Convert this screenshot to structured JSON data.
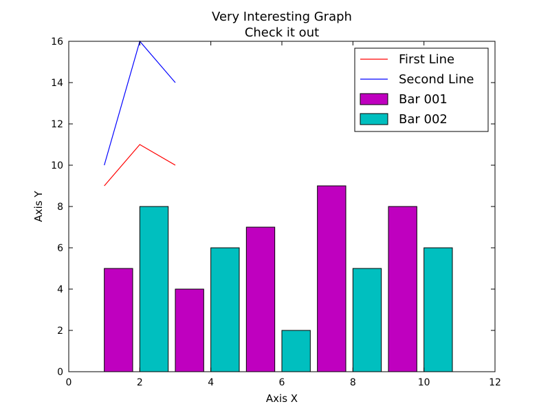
{
  "chart_data": {
    "type": "bar",
    "title": "Very Interesting Graph",
    "subtitle": "Check it out",
    "xlabel": "Axis X",
    "ylabel": "Axis Y",
    "xlim": [
      0,
      12
    ],
    "ylim": [
      0,
      16
    ],
    "xticks": [
      0,
      2,
      4,
      6,
      8,
      10,
      12
    ],
    "yticks": [
      0,
      2,
      4,
      6,
      8,
      10,
      12,
      14,
      16
    ],
    "grid": false,
    "legend_position": "top-right",
    "bar_width": 0.8,
    "bars": [
      {
        "name": "Bar 001",
        "color": "#bf00bf",
        "x": [
          1,
          3,
          5,
          7,
          9
        ],
        "values": [
          5,
          4,
          7,
          9,
          8
        ]
      },
      {
        "name": "Bar 002",
        "color": "#00bfbf",
        "x": [
          2,
          4,
          6,
          8,
          10
        ],
        "values": [
          8,
          6,
          2,
          5,
          6
        ]
      }
    ],
    "lines": [
      {
        "name": "First Line",
        "color": "#ff0000",
        "x": [
          1,
          2,
          3
        ],
        "values": [
          9,
          11,
          10
        ]
      },
      {
        "name": "Second Line",
        "color": "#0000ff",
        "x": [
          1,
          2,
          3
        ],
        "values": [
          10,
          16,
          14
        ]
      }
    ]
  }
}
